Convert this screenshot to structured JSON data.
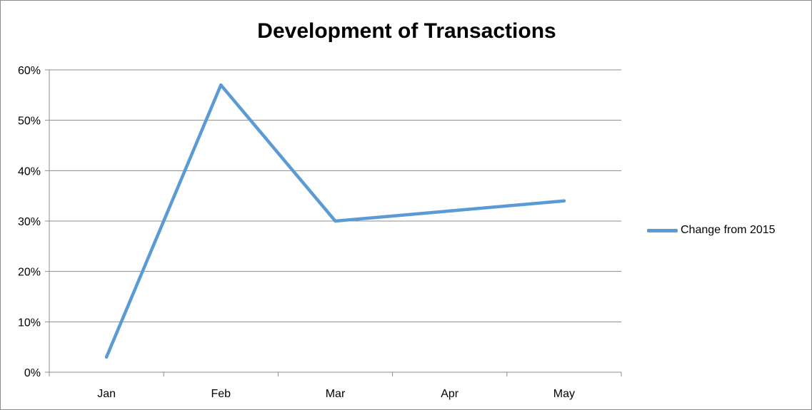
{
  "chart_data": {
    "type": "line",
    "title": "Development of Transactions",
    "xlabel": "",
    "ylabel": "",
    "categories": [
      "Jan",
      "Feb",
      "Mar",
      "Apr",
      "May"
    ],
    "series": [
      {
        "name": "Change from 2015",
        "values": [
          0.03,
          0.57,
          0.3,
          0.32,
          0.34
        ],
        "color": "#5b9bd5"
      }
    ],
    "ylim": [
      0,
      0.6
    ],
    "yticks": [
      0,
      0.1,
      0.2,
      0.3,
      0.4,
      0.5,
      0.6
    ],
    "ytick_labels": [
      "0%",
      "10%",
      "20%",
      "30%",
      "40%",
      "50%",
      "60%"
    ],
    "grid": true,
    "legend_position": "right"
  }
}
